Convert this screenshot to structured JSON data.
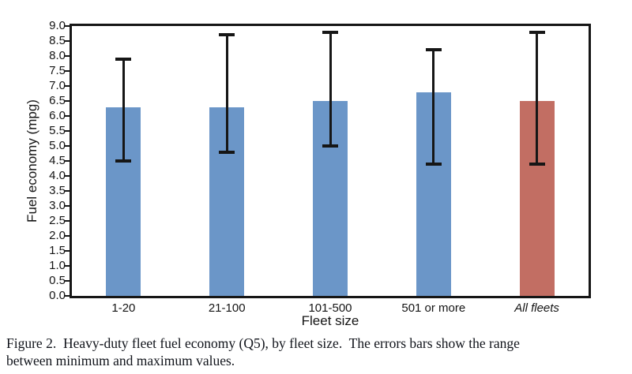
{
  "chart_data": {
    "type": "bar",
    "title": "",
    "xlabel": "Fleet size",
    "ylabel": "Fuel economy (mpg)",
    "ylim": [
      0,
      9
    ],
    "ytick_step": 0.5,
    "grid": false,
    "legend": "none",
    "error_bar_color": "#161616",
    "points": [
      {
        "category": "1-20",
        "value": 6.3,
        "min": 4.5,
        "max": 7.9,
        "color": "#6b96c8",
        "italic": false
      },
      {
        "category": "21-100",
        "value": 6.3,
        "min": 4.8,
        "max": 8.7,
        "color": "#6b96c8",
        "italic": false
      },
      {
        "category": "101-500",
        "value": 6.5,
        "min": 5.0,
        "max": 8.8,
        "color": "#6b96c8",
        "italic": false
      },
      {
        "category": "501 or more",
        "value": 6.8,
        "min": 4.4,
        "max": 8.2,
        "color": "#6b96c8",
        "italic": false
      },
      {
        "category": "All fleets",
        "value": 6.5,
        "min": 4.4,
        "max": 8.8,
        "color": "#c26e63",
        "italic": true
      }
    ]
  },
  "caption": {
    "line1": "Figure 2.  Heavy-duty fleet fuel economy (Q5), by fleet size.  The errors bars show the range",
    "line2": "between minimum and maximum values."
  }
}
